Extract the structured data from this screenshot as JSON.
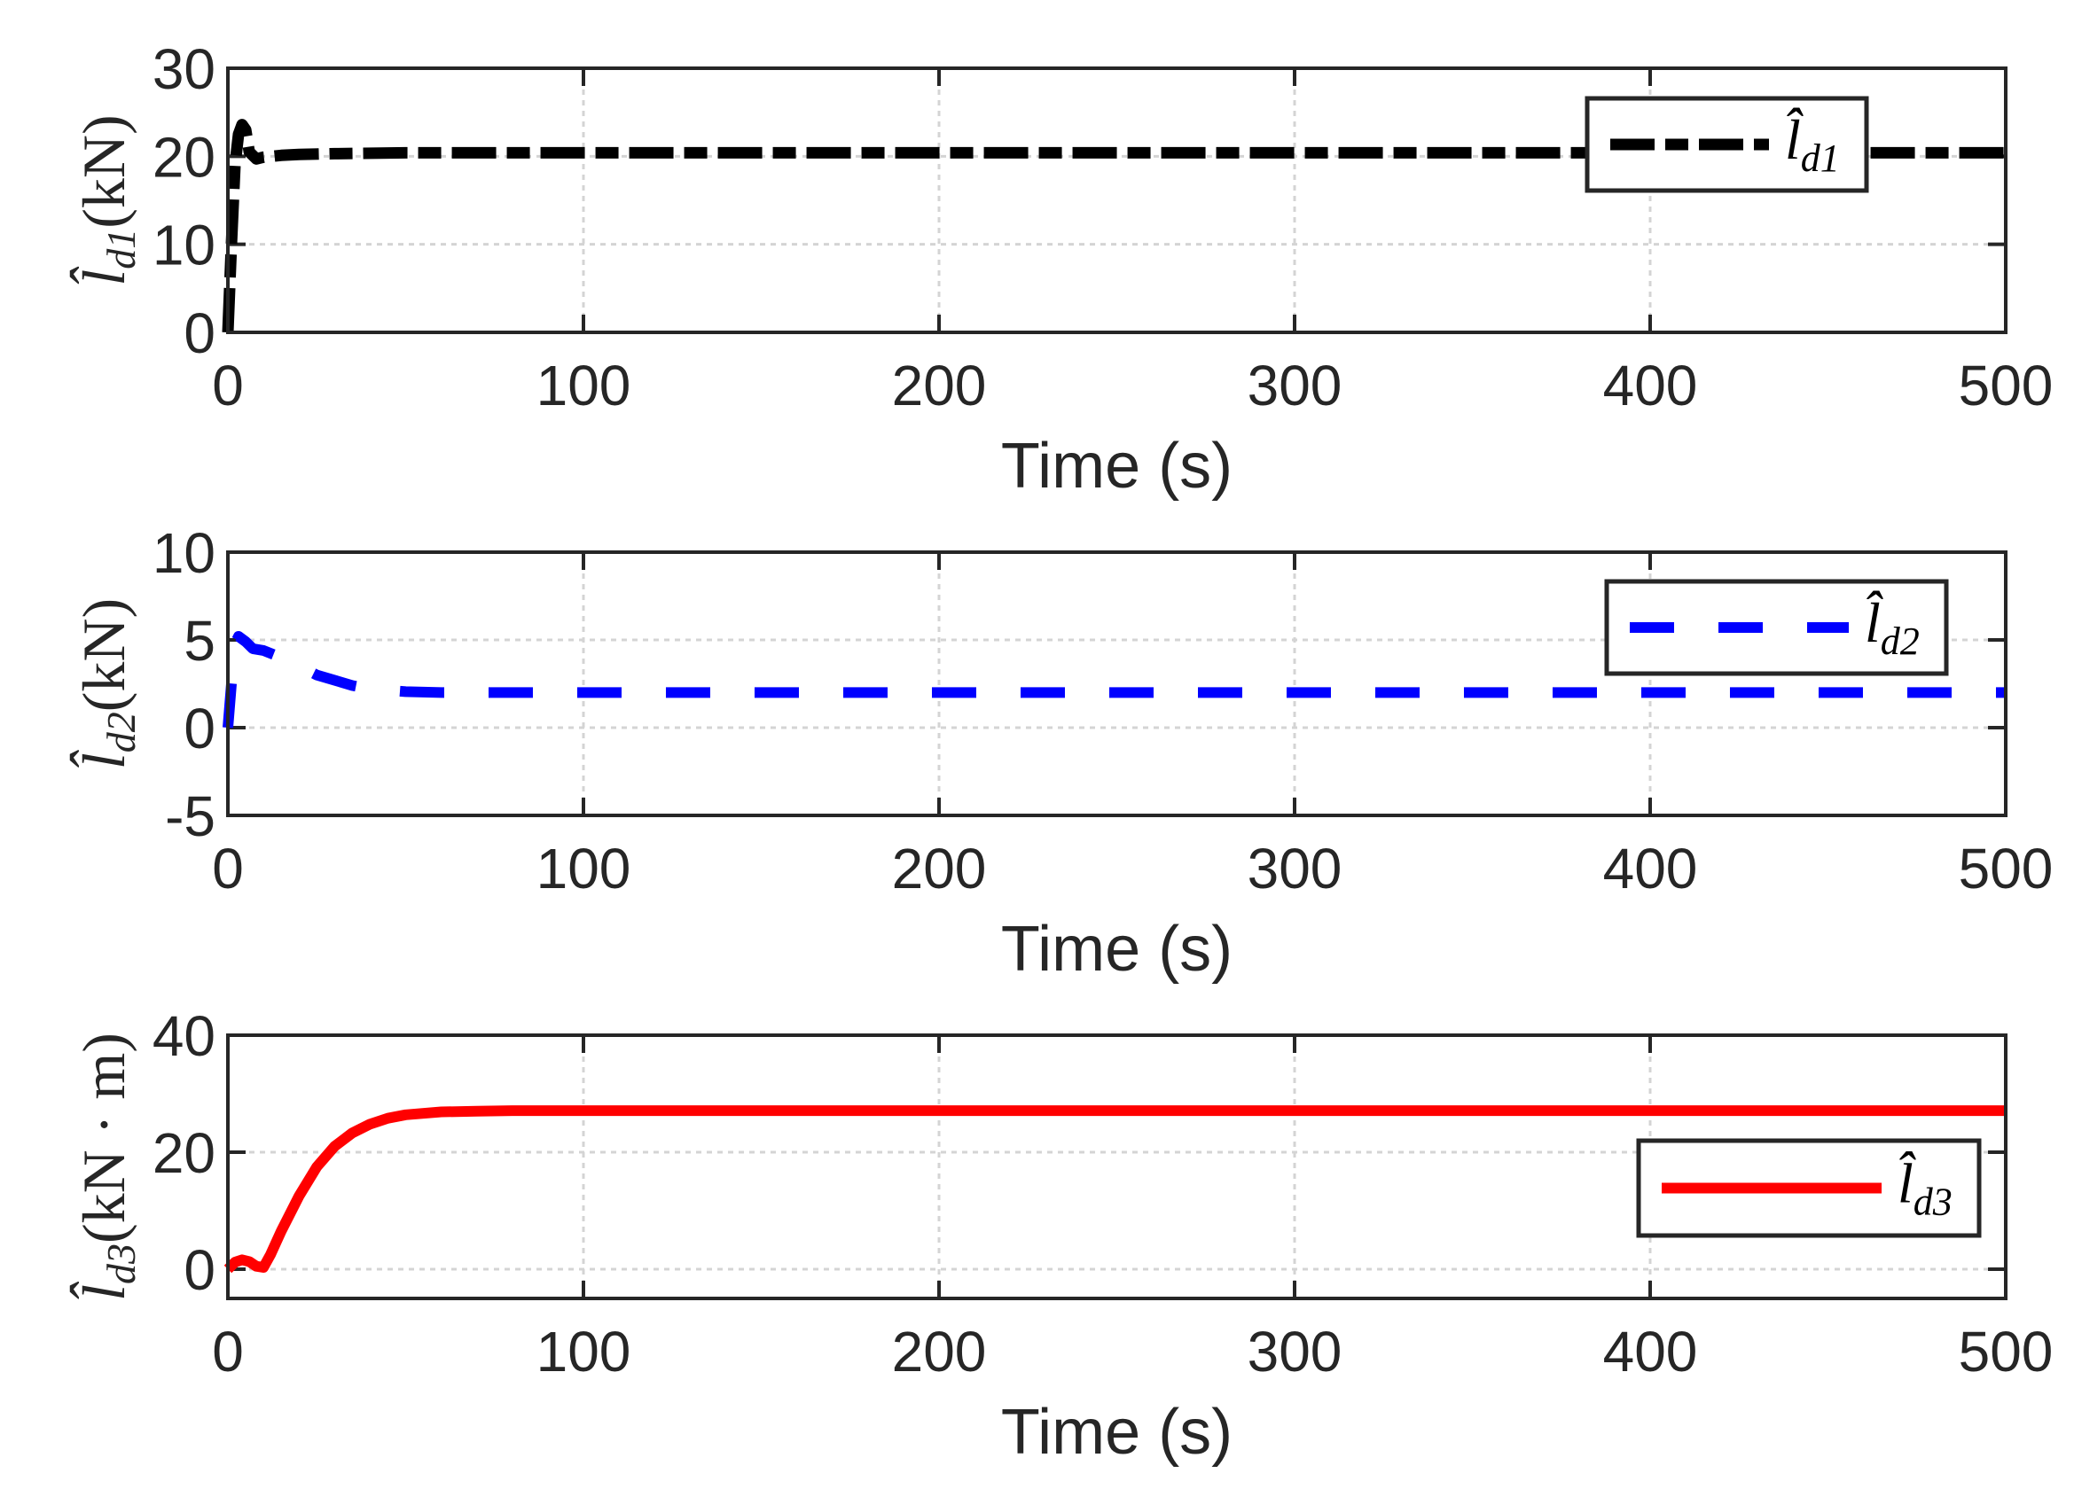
{
  "figure": {
    "background": "#ffffff",
    "axis_color": "#262626",
    "grid_color": "#d4d4d4"
  },
  "panels": [
    {
      "id": "ld1",
      "ylabel_symbol": "l",
      "ylabel_sub": "d1",
      "ylabel_unit": "(kN)",
      "xlabel": "Time (s)",
      "legend_symbol": "l",
      "legend_sub": "d1",
      "color": "#000000",
      "style": "dash-dot",
      "xticks": [
        "0",
        "100",
        "200",
        "300",
        "400",
        "500"
      ],
      "yticks": [
        "0",
        "10",
        "20",
        "30"
      ]
    },
    {
      "id": "ld2",
      "ylabel_symbol": "l",
      "ylabel_sub": "d2",
      "ylabel_unit": "(kN)",
      "xlabel": "Time (s)",
      "legend_symbol": "l",
      "legend_sub": "d2",
      "color": "#0000ff",
      "style": "dashed",
      "xticks": [
        "0",
        "100",
        "200",
        "300",
        "400",
        "500"
      ],
      "yticks": [
        "-5",
        "0",
        "5",
        "10"
      ]
    },
    {
      "id": "ld3",
      "ylabel_symbol": "l",
      "ylabel_sub": "d3",
      "ylabel_unit": "(kN · m)",
      "xlabel": "Time (s)",
      "legend_symbol": "l",
      "legend_sub": "d3",
      "color": "#ff0000",
      "style": "solid",
      "xticks": [
        "0",
        "100",
        "200",
        "300",
        "400",
        "500"
      ],
      "yticks": [
        "0",
        "20",
        "40"
      ]
    }
  ],
  "chart_data": [
    {
      "type": "line",
      "title": "",
      "xlabel": "Time (s)",
      "ylabel": "l̂_d1 (kN)",
      "xlim": [
        0,
        500
      ],
      "ylim": [
        0,
        30
      ],
      "xticks": [
        0,
        100,
        200,
        300,
        400,
        500
      ],
      "yticks": [
        0,
        10,
        20,
        30
      ],
      "grid": true,
      "legend_position": "upper right",
      "series": [
        {
          "name": "l̂_d1",
          "color": "#000000",
          "linestyle": "dash-dot",
          "x": [
            0,
            1,
            2,
            3,
            4,
            5,
            6,
            8,
            10,
            15,
            20,
            30,
            50,
            100,
            200,
            300,
            400,
            500
          ],
          "y": [
            0,
            10,
            19,
            22.5,
            23.6,
            23.0,
            20.5,
            19.7,
            19.9,
            20.1,
            20.2,
            20.3,
            20.4,
            20.4,
            20.4,
            20.4,
            20.4,
            20.4
          ]
        }
      ]
    },
    {
      "type": "line",
      "title": "",
      "xlabel": "Time (s)",
      "ylabel": "l̂_d2 (kN)",
      "xlim": [
        0,
        500
      ],
      "ylim": [
        -5,
        10
      ],
      "xticks": [
        0,
        100,
        200,
        300,
        400,
        500
      ],
      "yticks": [
        -5,
        0,
        5,
        10
      ],
      "grid": true,
      "legend_position": "upper right",
      "series": [
        {
          "name": "l̂_d2",
          "color": "#0000ff",
          "linestyle": "dashed",
          "x": [
            0,
            1,
            2,
            3,
            5,
            7,
            10,
            15,
            20,
            25,
            30,
            35,
            40,
            50,
            60,
            100,
            200,
            300,
            400,
            500
          ],
          "y": [
            0,
            2.5,
            4.8,
            5.2,
            4.9,
            4.5,
            4.4,
            4.0,
            3.5,
            3.0,
            2.7,
            2.4,
            2.2,
            2.05,
            2.0,
            2.0,
            2.0,
            2.0,
            2.0,
            2.0
          ]
        }
      ]
    },
    {
      "type": "line",
      "title": "",
      "xlabel": "Time (s)",
      "ylabel": "l̂_d3 (kN·m)",
      "xlim": [
        0,
        500
      ],
      "ylim": [
        -5,
        40
      ],
      "xticks": [
        0,
        100,
        200,
        300,
        400,
        500
      ],
      "yticks": [
        0,
        20,
        40
      ],
      "grid": true,
      "legend_position": "center right",
      "series": [
        {
          "name": "l̂_d3",
          "color": "#ff0000",
          "linestyle": "solid",
          "x": [
            0,
            2,
            4,
            6,
            8,
            10,
            12,
            15,
            20,
            25,
            30,
            35,
            40,
            45,
            50,
            60,
            70,
            80,
            100,
            200,
            300,
            400,
            500
          ],
          "y": [
            0,
            1.2,
            1.6,
            1.3,
            0.5,
            0.3,
            2.5,
            6.5,
            12.5,
            17.5,
            21.0,
            23.3,
            24.8,
            25.8,
            26.4,
            26.9,
            27.0,
            27.1,
            27.1,
            27.1,
            27.1,
            27.1,
            27.1
          ]
        }
      ]
    }
  ]
}
